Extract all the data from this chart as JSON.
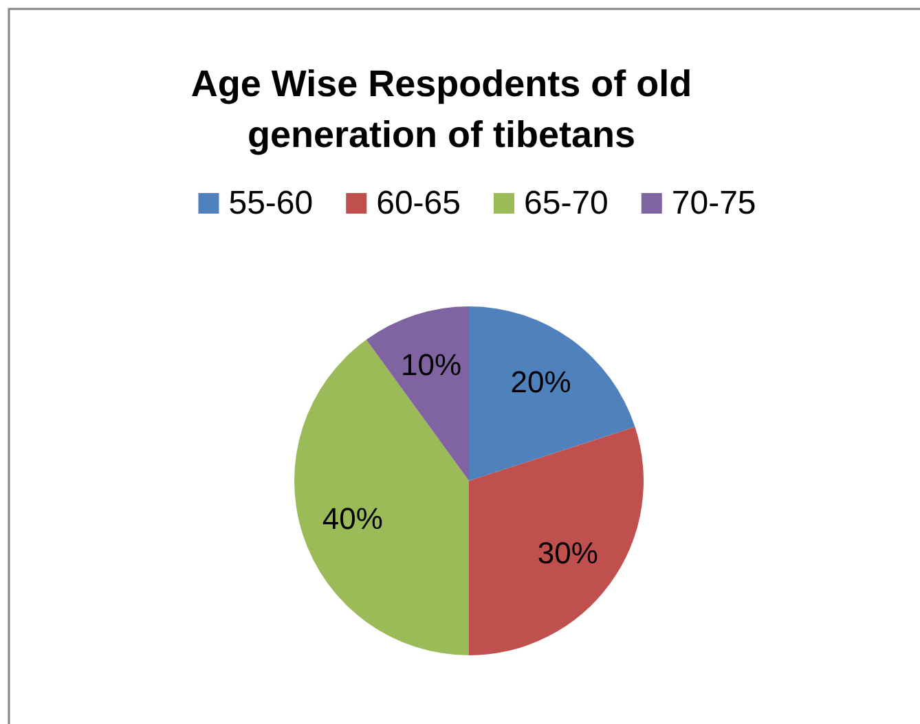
{
  "chart_data": {
    "type": "pie",
    "title": "Age Wise Respodents of old generation of tibetans",
    "categories": [
      "55-60",
      "60-65",
      "65-70",
      "70-75"
    ],
    "values": [
      20,
      30,
      40,
      10
    ],
    "colors": [
      "#4f81bd",
      "#c0504d",
      "#9bbb59",
      "#8064a2"
    ],
    "value_labels": [
      "20%",
      "30%",
      "40%",
      "10%"
    ],
    "legend": "top"
  }
}
